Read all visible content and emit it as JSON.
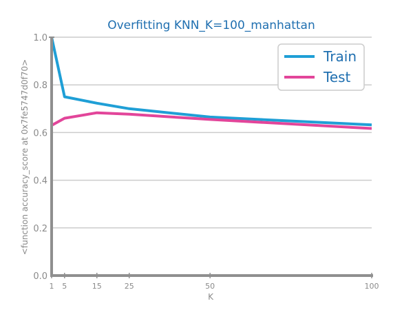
{
  "colors": {
    "title": "#1f6fb0",
    "grid": "#cccccc",
    "axis": "#8f8f8f",
    "legend_text": "#1f6fb0",
    "legend_border": "#cccccc"
  },
  "chart_data": {
    "type": "line",
    "title": "Overfitting KNN_K=100_manhattan",
    "xlabel": "K",
    "ylabel": "<function accuracy_score at 0x7fe5747d0f70>",
    "x": [
      1,
      5,
      15,
      25,
      50,
      100
    ],
    "xticks": [
      "1",
      "5",
      "15",
      "25",
      "50",
      "100"
    ],
    "yticks": [
      "0.0",
      "0.2",
      "0.4",
      "0.6",
      "0.8",
      "1.0"
    ],
    "xlim": [
      1,
      100
    ],
    "ylim": [
      0,
      1
    ],
    "grid": "horizontal",
    "legend_position": "top-right",
    "series": [
      {
        "name": "Train",
        "color": "#1f9fd6",
        "values": [
          1.0,
          0.75,
          0.723,
          0.7,
          0.665,
          0.632
        ]
      },
      {
        "name": "Test",
        "color": "#e2459a",
        "values": [
          0.63,
          0.66,
          0.683,
          0.677,
          0.655,
          0.617
        ]
      }
    ]
  }
}
